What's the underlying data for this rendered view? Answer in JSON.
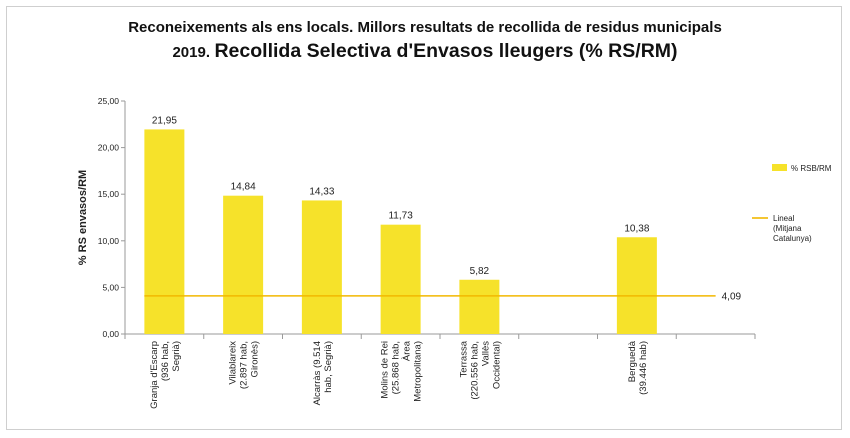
{
  "header": {
    "title_line1": "Reconeixements als ens locals. Millors resultats de recollida de residus municipals",
    "title_year": "2019.",
    "title_main": "Recollida Selectiva d'Envasos lleugers (% RS/RM)"
  },
  "chart_data": {
    "type": "bar",
    "title": "Reconeixements als ens locals. Millors resultats de recollida de residus municipals 2019. Recollida Selectiva d'Envasos lleugers (% RS/RM)",
    "ylabel": "% RS envasos/RM",
    "xlabel": "",
    "ylim": [
      0,
      25
    ],
    "yticks": [
      "0,00",
      "5,00",
      "10,00",
      "15,00",
      "20,00",
      "25,00"
    ],
    "categories": [
      [
        "Granja d'Escarp",
        "(936 hab,",
        "Segrià)"
      ],
      [
        "Vilablareix",
        "(2.897 hab,",
        "Gironès)"
      ],
      [
        "Alcarràs (9.514",
        "hab, Segrià)"
      ],
      [
        "Molins de Rei",
        "(25.868 hab,",
        "Àrea",
        "Metropolitana)"
      ],
      [
        "Terrassa",
        "(220.556 hab,",
        "Vallès",
        "Occidental)"
      ],
      [],
      [
        "Berguedà",
        "(39.446 hab)"
      ],
      []
    ],
    "series": [
      {
        "name": "% RSB/RM",
        "color": "#f6e22a",
        "values": [
          21.95,
          14.84,
          14.33,
          11.73,
          5.82,
          null,
          10.38,
          null
        ],
        "labels": [
          "21,95",
          "14,84",
          "14,33",
          "11,73",
          "5,82",
          "",
          "10,38",
          ""
        ]
      }
    ],
    "reference_line": {
      "legend_lines": [
        "Lineal",
        "(Mitjana",
        "Catalunya)"
      ],
      "value": 4.09,
      "label": "4,09",
      "color": "#f2b800"
    },
    "legend": {
      "placement": "right"
    },
    "grid": false
  }
}
